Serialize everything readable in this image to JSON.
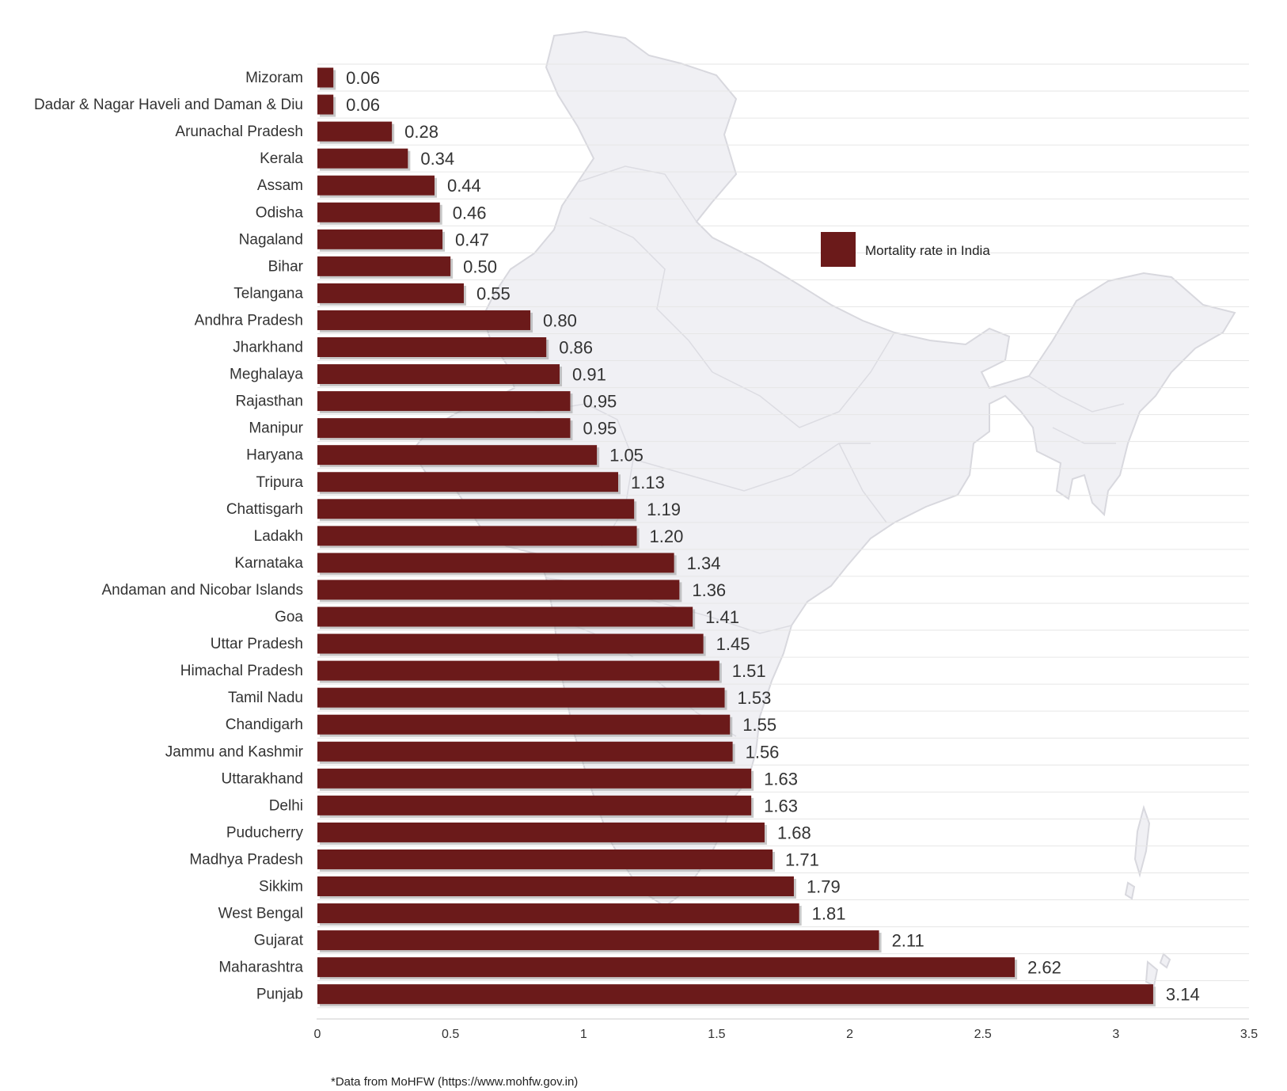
{
  "chart_data": {
    "type": "bar",
    "orientation": "horizontal",
    "categories": [
      "Mizoram",
      "Dadar & Nagar Haveli and Daman & Diu",
      "Arunachal Pradesh",
      "Kerala",
      "Assam",
      "Odisha",
      "Nagaland",
      "Bihar",
      "Telangana",
      "Andhra Pradesh",
      "Jharkhand",
      "Meghalaya",
      "Rajasthan",
      "Manipur",
      "Haryana",
      "Tripura",
      "Chattisgarh",
      "Ladakh",
      "Karnataka",
      "Andaman and Nicobar Islands",
      "Goa",
      "Uttar Pradesh",
      "Himachal Pradesh",
      "Tamil Nadu",
      "Chandigarh",
      "Jammu and Kashmir",
      "Uttarakhand",
      "Delhi",
      "Puducherry",
      "Madhya Pradesh",
      "Sikkim",
      "West Bengal",
      "Gujarat",
      "Maharashtra",
      "Punjab"
    ],
    "values": [
      0.06,
      0.06,
      0.28,
      0.34,
      0.44,
      0.46,
      0.47,
      0.5,
      0.55,
      0.8,
      0.86,
      0.91,
      0.95,
      0.95,
      1.05,
      1.13,
      1.19,
      1.2,
      1.34,
      1.36,
      1.41,
      1.45,
      1.51,
      1.53,
      1.55,
      1.56,
      1.63,
      1.63,
      1.68,
      1.71,
      1.79,
      1.81,
      2.11,
      2.62,
      3.14
    ],
    "value_labels": [
      "0.06",
      "0.06",
      "0.28",
      "0.34",
      "0.44",
      "0.46",
      "0.47",
      "0.50",
      "0.55",
      "0.80",
      "0.86",
      "0.91",
      "0.95",
      "0.95",
      "1.05",
      "1.13",
      "1.19",
      "1.20",
      "1.34",
      "1.36",
      "1.41",
      "1.45",
      "1.51",
      "1.53",
      "1.55",
      "1.56",
      "1.63",
      "1.63",
      "1.68",
      "1.71",
      "1.79",
      "1.81",
      "2.11",
      "2.62",
      "3.14"
    ],
    "series": [
      {
        "name": "Mortality rate in India",
        "color": "#6b1a1a"
      }
    ],
    "xlim": [
      0,
      3.5
    ],
    "xticks": [
      "0",
      "0.5",
      "1",
      "1.5",
      "2",
      "2.5",
      "3",
      "3.5"
    ],
    "grid": "horizontal lines",
    "legend_position": "right-center",
    "background_image": "india-map-silhouette"
  },
  "footer": {
    "source": "*Data from MoHFW (https://www.mohfw.gov.in)"
  }
}
